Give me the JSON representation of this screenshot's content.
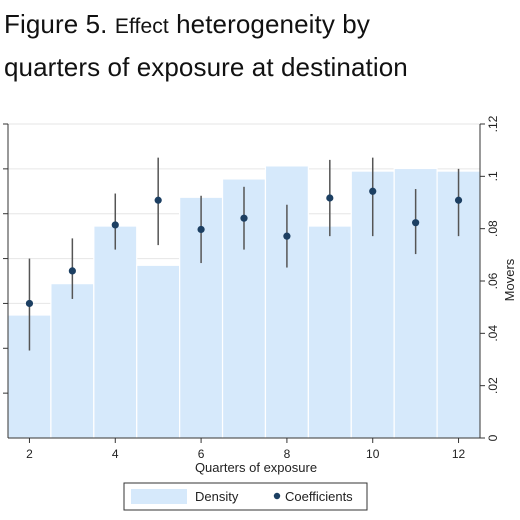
{
  "figure": {
    "label": "Figure 5.",
    "title_small": "Effect",
    "title_rest": "heterogeneity by",
    "title_line2": "quarters of exposure at destination"
  },
  "chart_data": {
    "type": "bar",
    "xlabel": "Quarters of exposure",
    "ylabel_right": "Movers",
    "x_ticks": [
      2,
      4,
      6,
      8,
      10,
      12
    ],
    "x_range": [
      1.5,
      12.5
    ],
    "right_axis": {
      "ticks": [
        "0",
        ".02",
        ".04",
        ".06",
        ".08",
        ".1",
        ".12"
      ],
      "tick_values": [
        0,
        0.02,
        0.04,
        0.06,
        0.08,
        0.1,
        0.12
      ],
      "range": [
        0,
        0.12
      ]
    },
    "left_axis": {
      "range": [
        -0.6,
        0.8
      ],
      "ticks": [
        -0.4,
        -0.2,
        0,
        0.2,
        0.4,
        0.6,
        0.8
      ]
    },
    "categories": [
      2,
      3,
      4,
      5,
      6,
      7,
      8,
      9,
      10,
      11,
      12
    ],
    "series": [
      {
        "name": "Density",
        "axis": "right",
        "kind": "bar",
        "color": "#d6e9fb",
        "values": [
          0.047,
          0.059,
          0.081,
          0.066,
          0.092,
          0.099,
          0.104,
          0.081,
          0.102,
          0.103,
          0.102
        ]
      },
      {
        "name": "Coefficients",
        "axis": "left",
        "kind": "point-with-ci",
        "color": "#1c3f62",
        "values": [
          0.0,
          0.145,
          0.35,
          0.46,
          0.33,
          0.38,
          0.3,
          0.47,
          0.5,
          0.36,
          0.46
        ],
        "ci_low": [
          -0.21,
          0.02,
          0.24,
          0.26,
          0.18,
          0.24,
          0.16,
          0.3,
          0.3,
          0.22,
          0.3
        ],
        "ci_high": [
          0.2,
          0.29,
          0.49,
          0.65,
          0.48,
          0.52,
          0.44,
          0.64,
          0.65,
          0.51,
          0.6
        ]
      }
    ],
    "legend": {
      "position": "bottom",
      "entries": [
        "Density",
        "Coefficients"
      ]
    },
    "grid": "horizontal"
  }
}
